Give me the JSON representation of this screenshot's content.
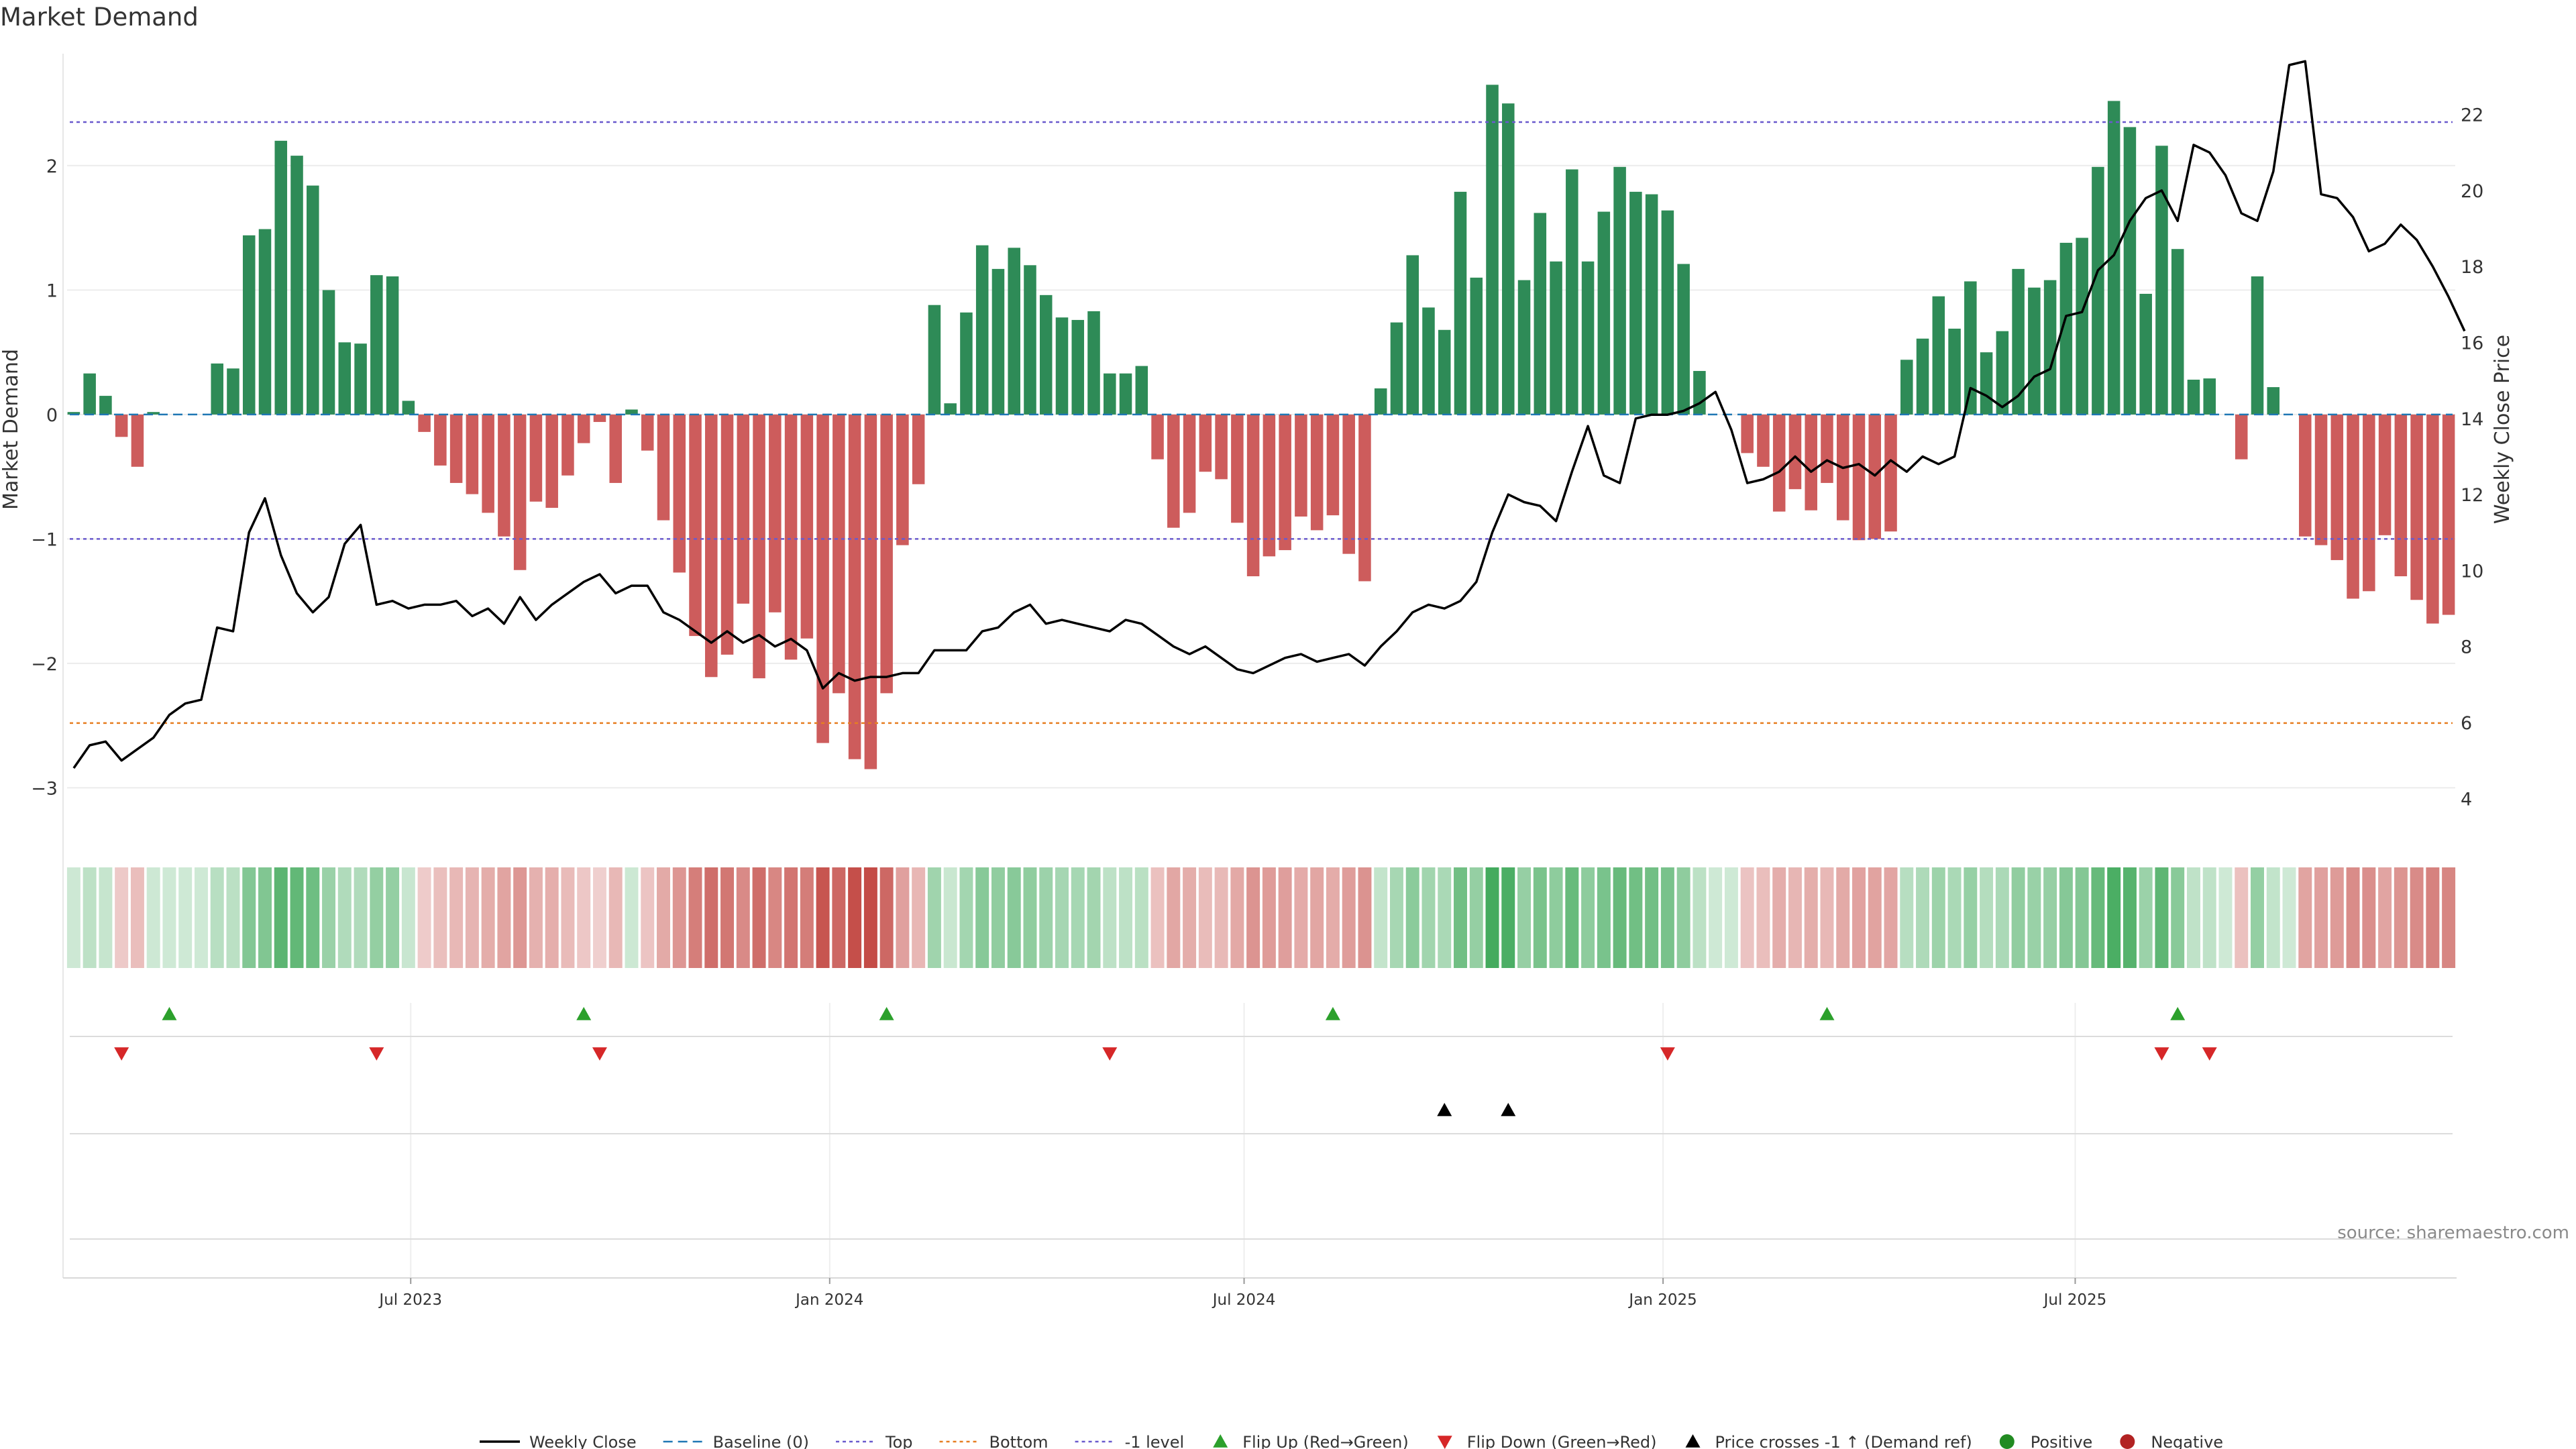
{
  "chart_data": {
    "type": "bar",
    "title": "Market Demand",
    "ylabel": "Market Demand",
    "y2label": "Weekly Close Price",
    "ylim": [
      -3.3,
      2.9
    ],
    "y2lim": [
      3.3,
      23.6
    ],
    "yticks": [
      2,
      1,
      0,
      -1,
      -2,
      -3
    ],
    "ytick_labels": [
      "2",
      "1",
      "0",
      "−1",
      "−2",
      "−3"
    ],
    "y2ticks": [
      22,
      20,
      18,
      16,
      14,
      12,
      10,
      8,
      6,
      4
    ],
    "levels": {
      "top": 2.35,
      "bottom": -2.48,
      "minus_one": -1,
      "baseline": 0
    },
    "x_start": "2023-02-03",
    "week_days": 7,
    "xticks": [
      {
        "date": "2023-07-01",
        "label": "Jul 2023"
      },
      {
        "date": "2024-01-01",
        "label": "Jan 2024"
      },
      {
        "date": "2024-07-01",
        "label": "Jul 2024"
      },
      {
        "date": "2025-01-01",
        "label": "Jan 2025"
      },
      {
        "date": "2025-07-01",
        "label": "Jul 2025"
      }
    ],
    "demand": [
      0.02,
      0.33,
      0.15,
      -0.18,
      -0.42,
      0.02,
      0.0,
      0.0,
      0.0,
      0.41,
      0.37,
      1.44,
      1.49,
      2.2,
      2.08,
      1.84,
      1.0,
      0.58,
      0.57,
      1.12,
      1.11,
      0.11,
      -0.14,
      -0.41,
      -0.55,
      -0.64,
      -0.79,
      -0.98,
      -1.25,
      -0.7,
      -0.75,
      -0.49,
      -0.23,
      -0.06,
      -0.55,
      0.04,
      -0.29,
      -0.85,
      -1.27,
      -1.78,
      -2.11,
      -1.93,
      -1.52,
      -2.12,
      -1.59,
      -1.97,
      -1.8,
      -2.64,
      -2.24,
      -2.77,
      -2.85,
      -2.24,
      -1.05,
      -0.56,
      0.88,
      0.09,
      0.82,
      1.36,
      1.17,
      1.34,
      1.2,
      0.96,
      0.78,
      0.76,
      0.83,
      0.33,
      0.33,
      0.39,
      -0.36,
      -0.91,
      -0.79,
      -0.46,
      -0.52,
      -0.87,
      -1.3,
      -1.14,
      -1.09,
      -0.82,
      -0.93,
      -0.81,
      -1.12,
      -1.34,
      0.21,
      0.74,
      1.28,
      0.86,
      0.68,
      1.79,
      1.1,
      2.65,
      2.5,
      1.08,
      1.62,
      1.23,
      1.97,
      1.23,
      1.63,
      1.99,
      1.79,
      1.77,
      1.64,
      1.21,
      0.35,
      0.0,
      0.0,
      -0.31,
      -0.42,
      -0.78,
      -0.6,
      -0.77,
      -0.55,
      -0.85,
      -1.01,
      -1.0,
      -0.94,
      0.44,
      0.61,
      0.95,
      0.69,
      1.07,
      0.5,
      0.67,
      1.17,
      1.02,
      1.08,
      1.38,
      1.42,
      1.99,
      2.52,
      2.31,
      0.97,
      2.16,
      1.33,
      0.28,
      0.29,
      0.0,
      -0.36,
      1.11,
      0.22,
      0.0,
      -0.98,
      -1.05,
      -1.17,
      -1.48,
      -1.42,
      -0.97,
      -1.3,
      -1.49,
      -1.68,
      -1.61
    ],
    "close": [
      4.8,
      5.4,
      5.5,
      5.0,
      5.3,
      5.6,
      6.2,
      6.5,
      6.6,
      8.5,
      8.4,
      11.0,
      11.9,
      10.4,
      9.4,
      8.9,
      9.3,
      10.7,
      11.2,
      9.1,
      9.2,
      9.0,
      9.1,
      9.1,
      9.2,
      8.8,
      9.0,
      8.6,
      9.3,
      8.7,
      9.1,
      9.4,
      9.7,
      9.9,
      9.4,
      9.6,
      9.6,
      8.9,
      8.7,
      8.4,
      8.1,
      8.4,
      8.1,
      8.3,
      8.0,
      8.2,
      7.9,
      6.9,
      7.3,
      7.1,
      7.2,
      7.2,
      7.3,
      7.3,
      7.9,
      7.9,
      7.9,
      8.4,
      8.5,
      8.9,
      9.1,
      8.6,
      8.7,
      8.6,
      8.5,
      8.4,
      8.7,
      8.6,
      8.3,
      8.0,
      7.8,
      8.0,
      7.7,
      7.4,
      7.3,
      7.5,
      7.7,
      7.8,
      7.6,
      7.7,
      7.8,
      7.5,
      8.0,
      8.4,
      8.9,
      9.1,
      9.0,
      9.2,
      9.7,
      11.0,
      12.0,
      11.8,
      11.7,
      11.3,
      12.6,
      13.8,
      12.5,
      12.3,
      14.0,
      14.1,
      14.1,
      14.2,
      14.4,
      14.7,
      13.7,
      12.3,
      12.4,
      12.6,
      13.0,
      12.6,
      12.9,
      12.7,
      12.8,
      12.5,
      12.9,
      12.6,
      13.0,
      12.8,
      13.0,
      14.8,
      14.6,
      14.3,
      14.6,
      15.1,
      15.3,
      16.7,
      16.8,
      17.9,
      18.3,
      19.2,
      19.8,
      20.0,
      19.2,
      21.2,
      21.0,
      20.4,
      19.4,
      19.2,
      20.5,
      23.3,
      23.4,
      19.9,
      19.8,
      19.3,
      18.4,
      18.6,
      19.1,
      18.7,
      18.0,
      17.2,
      16.3
    ],
    "flip_up_weeks": [
      6,
      32,
      51,
      79,
      110,
      132
    ],
    "flip_down_weeks": [
      3,
      19,
      33,
      65,
      100,
      131,
      134
    ],
    "price_cross_weeks": [
      86,
      90
    ],
    "colors": {
      "positive_bar": "#2e8b57",
      "negative_bar": "#cd5c5c",
      "baseline": "#1f77b4",
      "top": "#6a5acd",
      "bottom": "#e67e22",
      "minus_one": "#6a5acd",
      "flip_up": "#2ca02c",
      "flip_down": "#d62728",
      "cross": "#000000",
      "positive": "#228b22",
      "negative": "#b22222",
      "heat_pos": "#3aa655",
      "heat_neg": "#c44b46"
    }
  },
  "source": "source: sharemaestro.com",
  "legend": [
    {
      "key": "weekly-close",
      "label": "Weekly Close",
      "type": "line",
      "color": "#000000"
    },
    {
      "key": "baseline",
      "label": "Baseline (0)",
      "type": "dash",
      "color": "#1f77b4"
    },
    {
      "key": "top",
      "label": "Top",
      "type": "dot",
      "color": "#6a5acd"
    },
    {
      "key": "bottom",
      "label": "Bottom",
      "type": "dot",
      "color": "#e67e22"
    },
    {
      "key": "minus-one-level",
      "label": "-1 level",
      "type": "dot",
      "color": "#6a5acd"
    },
    {
      "key": "flip-up",
      "label": "Flip Up (Red→Green)",
      "type": "tri-up",
      "color": "#2ca02c"
    },
    {
      "key": "flip-down",
      "label": "Flip Down (Green→Red)",
      "type": "tri-down",
      "color": "#d62728"
    },
    {
      "key": "price-crosses",
      "label": "Price crosses -1 ↑ (Demand ref)",
      "type": "tri-up",
      "color": "#000000"
    },
    {
      "key": "positive",
      "label": "Positive",
      "type": "circle",
      "color": "#228b22"
    },
    {
      "key": "negative",
      "label": "Negative",
      "type": "circle",
      "color": "#b22222"
    }
  ]
}
